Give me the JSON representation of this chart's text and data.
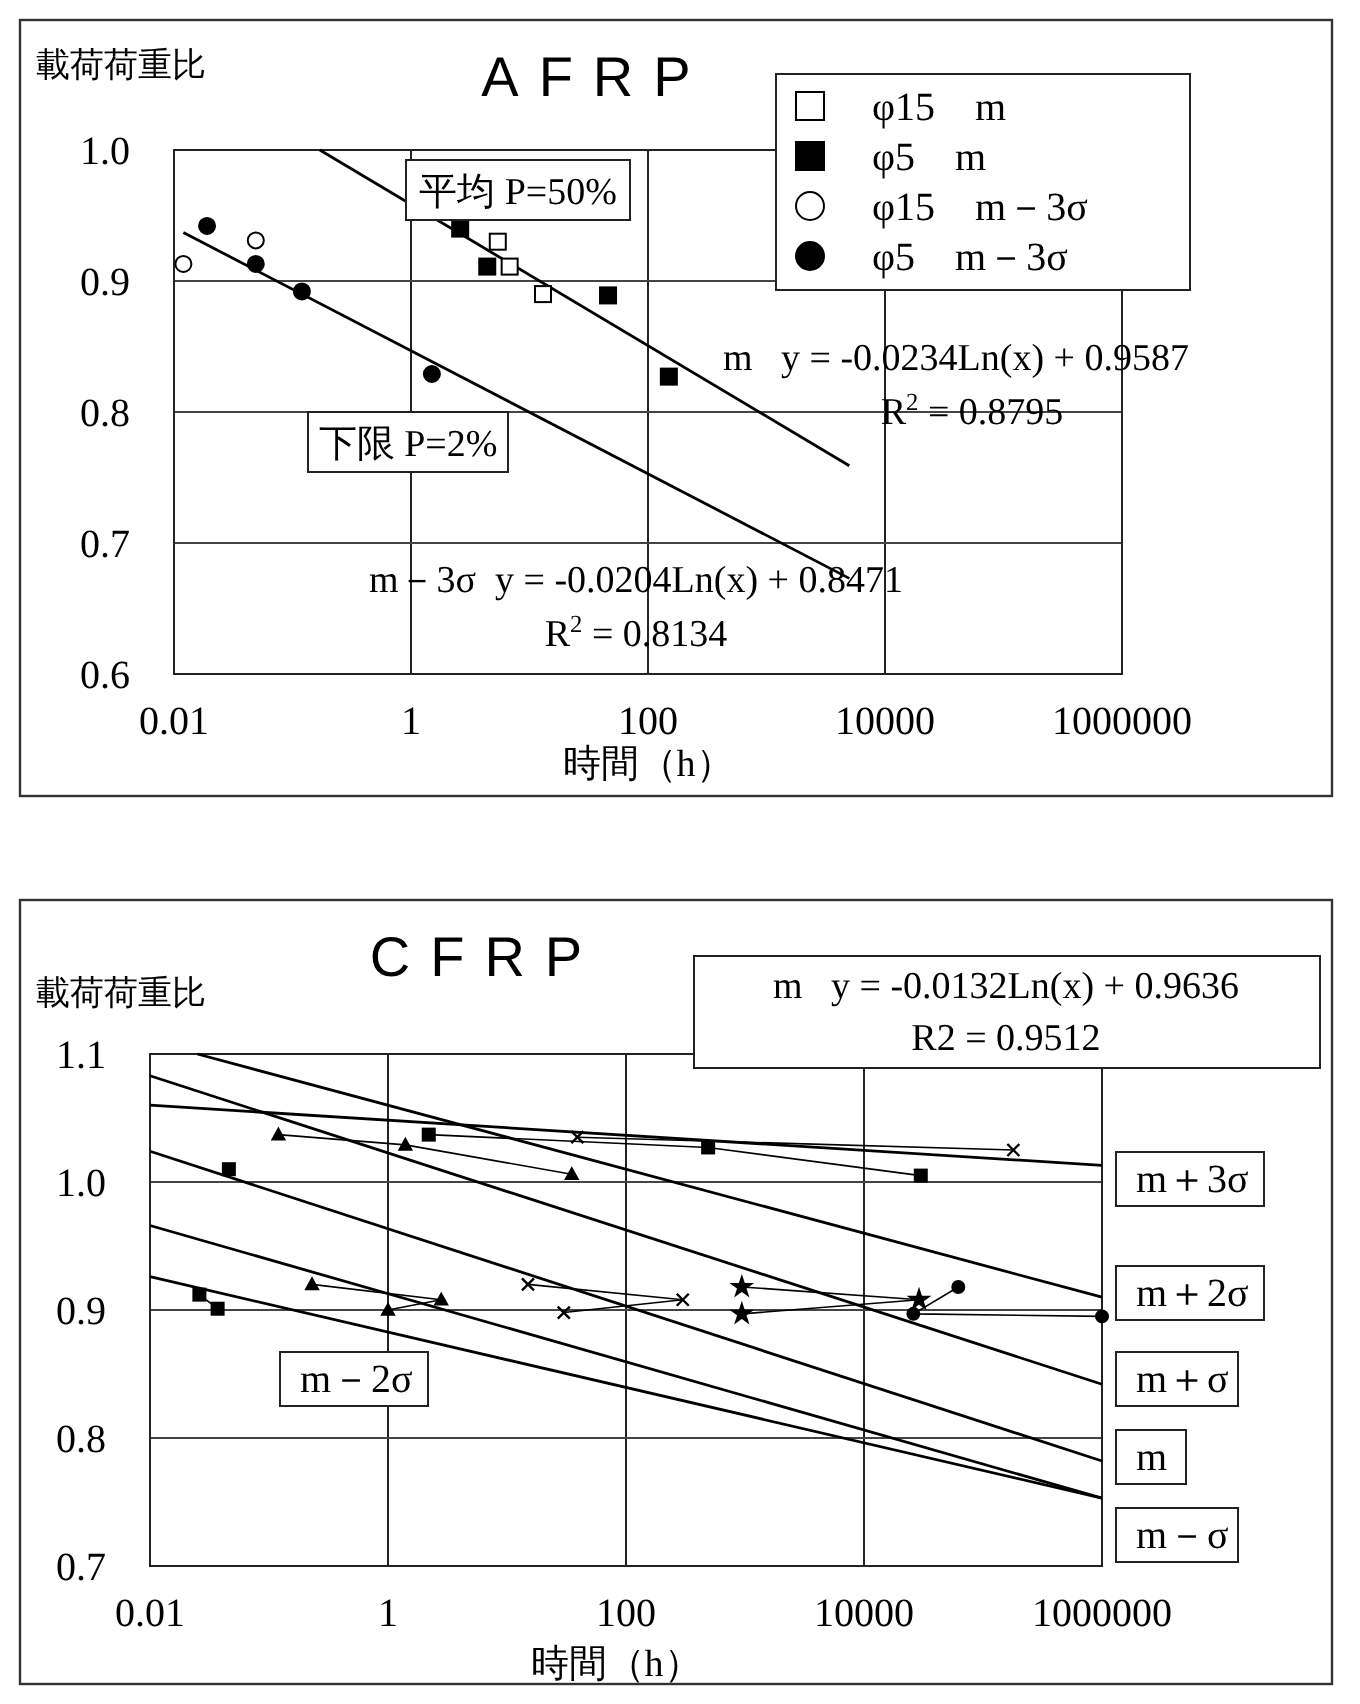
{
  "chart_data": [
    {
      "type": "scatter",
      "title": "AFRP",
      "ylabel": "載荷荷重比",
      "xlabel": "時間（h）",
      "log": "x",
      "xlim": [
        0.01,
        1000000
      ],
      "xticks": [
        0.01,
        1,
        100,
        10000,
        1000000
      ],
      "ylim": [
        0.6,
        1.0
      ],
      "yticks": [
        0.6,
        0.7,
        0.8,
        0.9,
        {
          "value": 1.0,
          "label": "1.0"
        }
      ],
      "grid": true,
      "legend": "top right",
      "series": [
        {
          "name": "φ15　m",
          "marker": "square",
          "color": "#ffffff",
          "x": [
            5.4,
            6.8,
            13
          ],
          "values": [
            0.93,
            0.911,
            0.89
          ]
        },
        {
          "name": "φ5　m",
          "marker": "square",
          "color": "#000000",
          "x": [
            2.6,
            4.4,
            46,
            150
          ],
          "values": [
            0.94,
            0.911,
            0.889,
            0.827
          ]
        },
        {
          "name": "φ15　m－3σ",
          "marker": "circle",
          "color": "#ffffff",
          "x": [
            0.012,
            0.049
          ],
          "values": [
            0.913,
            0.931
          ]
        },
        {
          "name": "φ5　m－3σ",
          "marker": "circle",
          "color": "#000000",
          "x": [
            0.019,
            0.049,
            0.12,
            1.5
          ],
          "values": [
            0.942,
            0.913,
            0.892,
            0.829
          ]
        },
        {
          "type": "line",
          "marker": "none",
          "color": "#000000",
          "x": [
            0.17,
            5000
          ],
          "values": [
            1.0,
            0.759
          ]
        },
        {
          "type": "line",
          "marker": "none",
          "color": "#000000",
          "x": [
            0.012,
            5000
          ],
          "values": [
            0.937,
            0.673
          ]
        }
      ],
      "annotations": [
        "平均 P=50%",
        "下限 P=2%",
        "m   y = -0.0234Ln(x) + 0.9587",
        "R$^{2}$ = 0.8795",
        "m－3σ  y = -0.0204Ln(x) + 0.8471",
        "R$^{2}$ = 0.8134"
      ]
    },
    {
      "type": "line",
      "title": "CFRP",
      "ylabel": "載荷荷重比",
      "xlabel": "時間（h）",
      "log": "x",
      "xlim": [
        0.01,
        1000000
      ],
      "xticks": [
        0.01,
        1,
        100,
        10000,
        1000000
      ],
      "ylim": [
        0.7,
        1.1
      ],
      "yticks": [
        0.7,
        0.8,
        0.9,
        {
          "value": 1.0,
          "label": "1.0"
        },
        1.1
      ],
      "grid": true,
      "series": [
        {
          "name": "m＋3σ",
          "marker": "none",
          "color": "#000000",
          "x": [
            0.01,
            1000000
          ],
          "values": [
            1.06,
            1.013
          ]
        },
        {
          "name": "m＋2σ",
          "marker": "none",
          "color": "#000000",
          "x": [
            0.025,
            1000000
          ],
          "values": [
            1.1,
            0.91
          ]
        },
        {
          "name": "m＋σ",
          "marker": "none",
          "color": "#000000",
          "x": [
            0.01,
            1000000
          ],
          "values": [
            1.083,
            0.842
          ]
        },
        {
          "name": "m",
          "marker": "none",
          "color": "#000000",
          "x": [
            0.01,
            1000000
          ],
          "values": [
            1.024,
            0.782
          ]
        },
        {
          "name": "m－σ",
          "marker": "none",
          "color": "#000000",
          "x": [
            0.01,
            1000000
          ],
          "values": [
            0.966,
            0.753
          ]
        },
        {
          "name": "m－2σ",
          "marker": "none",
          "color": "#000000",
          "x": [
            0.01,
            1000000
          ],
          "values": [
            0.926,
            0.753
          ]
        },
        {
          "marker": "triangle",
          "color": "#000000",
          "x": [
            0.12,
            1.4,
            35
          ],
          "values": [
            1.037,
            1.029,
            1.006
          ]
        },
        {
          "marker": "square",
          "color": "#000000",
          "x": [
            2.2,
            490,
            30000
          ],
          "values": [
            1.037,
            1.027,
            1.005
          ]
        },
        {
          "marker": "cross",
          "color": "#000000",
          "x": [
            39,
            180000
          ],
          "values": [
            1.035,
            1.025
          ]
        },
        {
          "marker": "square",
          "color": "#000000",
          "x": [
            0.046
          ],
          "values": [
            1.01
          ]
        },
        {
          "marker": "square",
          "color": "#000000",
          "x": [
            0.026,
            0.037
          ],
          "values": [
            0.912,
            0.901
          ]
        },
        {
          "marker": "triangle",
          "color": "#000000",
          "x": [
            0.23,
            2.8,
            1.0
          ],
          "values": [
            0.92,
            0.908,
            0.9
          ]
        },
        {
          "marker": "cross",
          "color": "#000000",
          "x": [
            15,
            300,
            30
          ],
          "values": [
            0.92,
            0.908,
            0.898
          ]
        },
        {
          "marker": "star",
          "color": "#000000",
          "x": [
            940,
            29000,
            940
          ],
          "values": [
            0.918,
            0.908,
            0.897
          ]
        },
        {
          "marker": "circle",
          "color": "#000000",
          "x": [
            62000,
            26000,
            1000000
          ],
          "values": [
            0.918,
            0.897,
            0.895
          ]
        }
      ],
      "annotations": [
        "m   y = -0.0132Ln(x) + 0.9636",
        "R2 = 0.9512"
      ]
    }
  ]
}
